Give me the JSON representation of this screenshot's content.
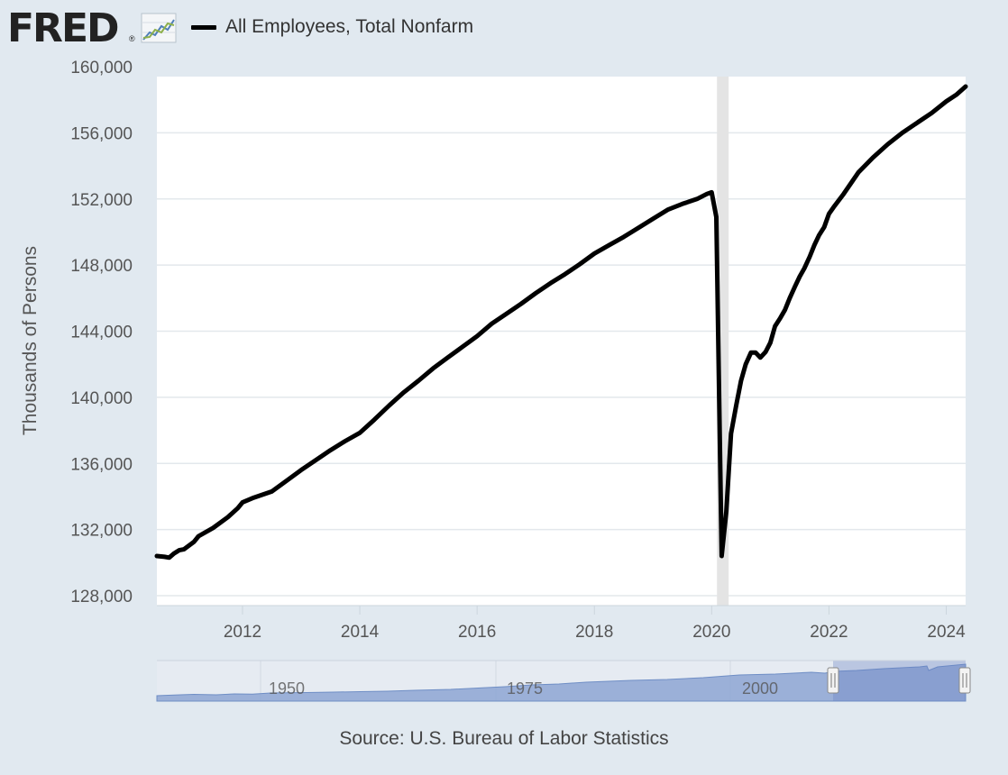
{
  "header": {
    "logo_text": "FRED",
    "logo_mark": "®",
    "logo_icon": "fred-chart-icon",
    "legend_label": "All Employees, Total Nonfarm"
  },
  "footer": {
    "source": "Source: U.S. Bureau of Labor Statistics"
  },
  "colors": {
    "background": "#e1e9f0",
    "plot_bg": "#ffffff",
    "series": "#000000",
    "recession": "#e4e4e4",
    "navigator_fill": "#8da6d3"
  },
  "chart_data": {
    "type": "line",
    "ylabel": "Thousands of Persons",
    "xlim": [
      2010.54,
      2024.33
    ],
    "ylim": [
      128000,
      160000
    ],
    "y_ticks": [
      128000,
      132000,
      136000,
      140000,
      144000,
      148000,
      152000,
      156000,
      160000
    ],
    "y_tick_labels": [
      "128,000",
      "132,000",
      "136,000",
      "140,000",
      "144,000",
      "148,000",
      "152,000",
      "156,000",
      "160,000"
    ],
    "x_ticks": [
      2012,
      2014,
      2016,
      2018,
      2020,
      2022,
      2024
    ],
    "x_tick_labels": [
      "2012",
      "2014",
      "2016",
      "2018",
      "2020",
      "2022",
      "2024"
    ],
    "grid": true,
    "recession": [
      2020.09,
      2020.29
    ],
    "navigator": {
      "labels": [
        "1950",
        "1975",
        "2000"
      ]
    },
    "series": [
      {
        "name": "All Employees, Total Nonfarm",
        "x": [
          2010.54,
          2010.67,
          2010.75,
          2010.83,
          2010.92,
          2011.0,
          2011.17,
          2011.25,
          2011.5,
          2011.75,
          2011.92,
          2012.0,
          2012.17,
          2012.5,
          2012.75,
          2013.0,
          2013.5,
          2013.75,
          2014.0,
          2014.25,
          2014.5,
          2014.75,
          2015.0,
          2015.25,
          2015.5,
          2015.75,
          2016.0,
          2016.25,
          2016.5,
          2016.75,
          2017.0,
          2017.25,
          2017.5,
          2017.75,
          2018.0,
          2018.25,
          2018.5,
          2018.75,
          2019.0,
          2019.25,
          2019.5,
          2019.75,
          2019.92,
          2020.0,
          2020.08,
          2020.17,
          2020.25,
          2020.33,
          2020.42,
          2020.5,
          2020.58,
          2020.67,
          2020.75,
          2020.83,
          2020.92,
          2021.0,
          2021.08,
          2021.17,
          2021.25,
          2021.33,
          2021.42,
          2021.5,
          2021.58,
          2021.67,
          2021.75,
          2021.83,
          2021.92,
          2022.0,
          2022.08,
          2022.25,
          2022.5,
          2022.75,
          2023.0,
          2023.25,
          2023.5,
          2023.75,
          2024.0,
          2024.17,
          2024.33
        ],
        "values": [
          130400,
          130350,
          130300,
          130550,
          130750,
          130800,
          131250,
          131600,
          132100,
          132750,
          133300,
          133650,
          133900,
          134300,
          134950,
          135600,
          136800,
          137350,
          137850,
          138650,
          139500,
          140300,
          141000,
          141750,
          142400,
          143050,
          143700,
          144450,
          145050,
          145650,
          146300,
          146900,
          147450,
          148050,
          148700,
          149200,
          149700,
          150250,
          150800,
          151350,
          151700,
          152000,
          152300,
          152400,
          150900,
          130400,
          133100,
          137800,
          139550,
          141000,
          142000,
          142700,
          142700,
          142400,
          142750,
          143300,
          144300,
          144800,
          145300,
          146000,
          146700,
          147300,
          147800,
          148500,
          149200,
          149800,
          150300,
          151100,
          151500,
          152300,
          153600,
          154500,
          155300,
          156000,
          156600,
          157200,
          157900,
          158300,
          158800
        ]
      }
    ]
  }
}
